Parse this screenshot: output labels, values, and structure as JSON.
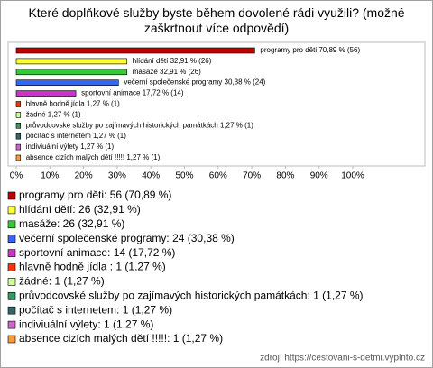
{
  "chart_data": {
    "type": "bar",
    "orientation": "horizontal",
    "title": "Které doplňkové služby byste během dovolené rádi využili? (možné zaškrtnout více odpovědí)",
    "categories": [
      "programy pro děti",
      "hlídání dětí",
      "masáže",
      "večerní společenské programy",
      "sportovní animace",
      "hlavně hodně jídla",
      "žádné",
      "průvodcovské služby po zajímavých historických památkách",
      "počítač s internetem",
      "indiviuální výlety",
      "absence cizích malých dětí !!!!!"
    ],
    "values": [
      70.89,
      32.91,
      32.91,
      30.38,
      17.72,
      1.27,
      1.27,
      1.27,
      1.27,
      1.27,
      1.27
    ],
    "value_labels": [
      "70,89 % (56)",
      "32,91 % (26)",
      "32,91 % (26)",
      "30,38 % (24)",
      "17,72 % (14)",
      "1,27 % (1)",
      "1,27 % (1)",
      "1,27 % (1)",
      "1,27 % (1)",
      "1,27 % (1)",
      "1,27 % (1)"
    ],
    "legend_labels": [
      "programy pro děti: 56 (70,89 %)",
      "hlídání dětí: 26 (32,91 %)",
      "masáže: 26 (32,91 %)",
      "večerní společenské programy: 24 (30,38 %)",
      "sportovní animace: 14 (17,72 %)",
      "hlavně hodně jídla : 1 (1,27 %)",
      "žádné: 1 (1,27 %)",
      "průvodcovské služby po zajímavých historických památkách: 1 (1,27 %)",
      "počítač s internetem: 1 (1,27 %)",
      "indiviuální výlety: 1 (1,27 %)",
      "absence cizích malých dětí !!!!!: 1 (1,27 %)"
    ],
    "colors": [
      "#c00000",
      "#ffff33",
      "#33cc33",
      "#3366ff",
      "#cc33cc",
      "#ff3300",
      "#ccff99",
      "#339966",
      "#336666",
      "#cc66cc",
      "#ff9933"
    ],
    "xlim": [
      0,
      100
    ],
    "xticks": [
      {
        "value": 0,
        "label": "0%"
      },
      {
        "value": 10,
        "label": "10%"
      },
      {
        "value": 20,
        "label": "20%"
      },
      {
        "value": 30,
        "label": "30%"
      },
      {
        "value": 40,
        "label": "40%"
      },
      {
        "value": 50,
        "label": "50%"
      },
      {
        "value": 60,
        "label": "60%"
      },
      {
        "value": 70,
        "label": "70%"
      },
      {
        "value": 80,
        "label": "80%"
      },
      {
        "value": 90,
        "label": "90%"
      },
      {
        "value": 100,
        "label": "100%"
      }
    ],
    "source": "zdroj: https://cestovani-s-detmi.vyplnto.cz"
  }
}
